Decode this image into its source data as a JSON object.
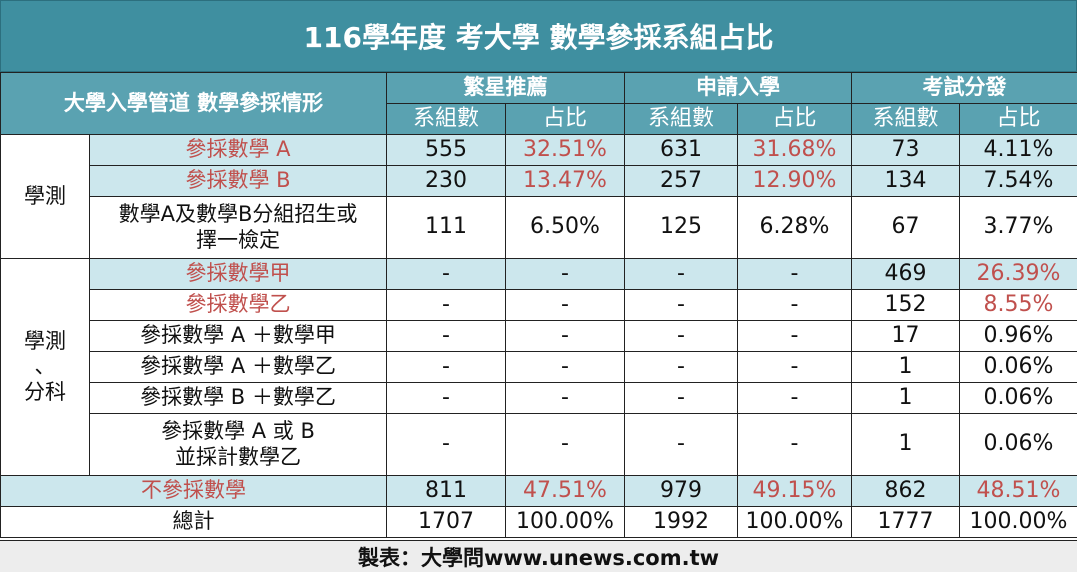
{
  "title": "116學年度 考大學 數學參採系組占比",
  "header": {
    "row_label": "大學入學管道 數學參採情形",
    "channels": [
      "繁星推薦",
      "申請入學",
      "考試分發"
    ],
    "sub": [
      "系組數",
      "占比",
      "系組數",
      "占比",
      "系組數",
      "占比"
    ]
  },
  "groups": {
    "g1": "學測",
    "g2_line1": "學測",
    "g2_line2": "、",
    "g2_line3": "分科"
  },
  "rows": [
    {
      "label": "參採數學 A",
      "v": [
        "555",
        "32.51%",
        "631",
        "31.68%",
        "73",
        "4.11%"
      ]
    },
    {
      "label": "參採數學 B",
      "v": [
        "230",
        "13.47%",
        "257",
        "12.90%",
        "134",
        "7.54%"
      ]
    },
    {
      "label_line1": "數學A及數學B分組招生或",
      "label_line2": "擇一檢定",
      "v": [
        "111",
        "6.50%",
        "125",
        "6.28%",
        "67",
        "3.77%"
      ]
    },
    {
      "label": "參採數學甲",
      "v": [
        "-",
        "-",
        "-",
        "-",
        "469",
        "26.39%"
      ]
    },
    {
      "label": "參採數學乙",
      "v": [
        "-",
        "-",
        "-",
        "-",
        "152",
        "8.55%"
      ]
    },
    {
      "label": "參採數學 A ＋數學甲",
      "v": [
        "-",
        "-",
        "-",
        "-",
        "17",
        "0.96%"
      ]
    },
    {
      "label": "參採數學 A ＋數學乙",
      "v": [
        "-",
        "-",
        "-",
        "-",
        "1",
        "0.06%"
      ]
    },
    {
      "label": "參採數學 B ＋數學乙",
      "v": [
        "-",
        "-",
        "-",
        "-",
        "1",
        "0.06%"
      ]
    },
    {
      "label_line1": "參採數學 A 或 B",
      "label_line2": "並採計數學乙",
      "v": [
        "-",
        "-",
        "-",
        "-",
        "1",
        "0.06%"
      ]
    },
    {
      "label": "不參採數學",
      "v": [
        "811",
        "47.51%",
        "979",
        "49.15%",
        "862",
        "48.51%"
      ]
    },
    {
      "label": "總計",
      "v": [
        "1707",
        "100.00%",
        "1992",
        "100.00%",
        "1777",
        "100.00%"
      ]
    }
  ],
  "footer": "製表：大學問www.unews.com.tw",
  "colors": {
    "title_bg": "#3f8fa0",
    "header_bg": "#5aa2b1",
    "shade": "#cce7ed",
    "highlight_text": "#c0504d"
  }
}
